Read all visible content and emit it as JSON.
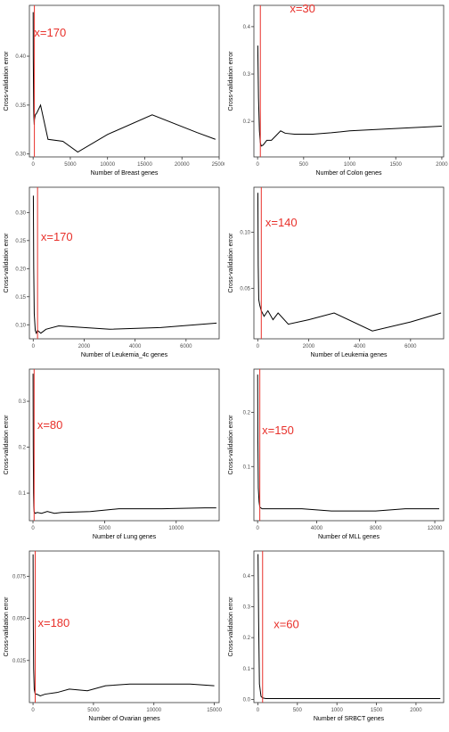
{
  "chart_data": [
    {
      "type": "line",
      "xlabel": "Number of Breast genes",
      "ylabel": "Cross-validation error",
      "xlim": [
        -500,
        25000
      ],
      "ylim": [
        0.297,
        0.452
      ],
      "xticks": [
        0,
        5000,
        10000,
        15000,
        20000,
        25000
      ],
      "xticklabels": [
        "0",
        "5000",
        "10000",
        "15000",
        "20000",
        "25000"
      ],
      "yticks": [
        0.3,
        0.35,
        0.4
      ],
      "yticklabels": [
        "0.30",
        "0.35",
        "0.40"
      ],
      "vline": 170,
      "annotation": "x=170",
      "annotation_pos": [
        150,
        0.42
      ],
      "x": [
        5,
        10,
        20,
        40,
        60,
        80,
        100,
        150,
        170,
        300,
        500,
        1000,
        2000,
        4000,
        6000,
        10000,
        16000,
        22000,
        24500
      ],
      "y": [
        0.445,
        0.43,
        0.4,
        0.38,
        0.36,
        0.345,
        0.338,
        0.33,
        0.335,
        0.34,
        0.342,
        0.35,
        0.315,
        0.313,
        0.302,
        0.32,
        0.34,
        0.322,
        0.315
      ]
    },
    {
      "type": "line",
      "xlabel": "Number of Colon genes",
      "ylabel": "Cross-validation error",
      "xlim": [
        -40,
        2020
      ],
      "ylim": [
        0.125,
        0.445
      ],
      "xticks": [
        0,
        500,
        1000,
        1500,
        2000
      ],
      "xticklabels": [
        "0",
        "500",
        "1000",
        "1500",
        "2000"
      ],
      "yticks": [
        0.2,
        0.3,
        0.4
      ],
      "yticklabels": [
        "0.2",
        "0.3",
        "0.4"
      ],
      "vline": 30,
      "annotation": "x=30",
      "annotation_pos": [
        350,
        0.43
      ],
      "x": [
        2,
        10,
        20,
        30,
        40,
        60,
        80,
        100,
        150,
        200,
        250,
        300,
        400,
        600,
        800,
        1000,
        1500,
        2000
      ],
      "y": [
        0.36,
        0.25,
        0.18,
        0.155,
        0.148,
        0.15,
        0.155,
        0.16,
        0.16,
        0.17,
        0.18,
        0.175,
        0.173,
        0.173,
        0.176,
        0.18,
        0.185,
        0.19
      ]
    },
    {
      "type": "line",
      "xlabel": "Number of Leukemia_4c genes",
      "ylabel": "Cross-validation error",
      "xlim": [
        -150,
        7300
      ],
      "ylim": [
        0.075,
        0.345
      ],
      "xticks": [
        0,
        2000,
        4000,
        6000
      ],
      "xticklabels": [
        "0",
        "2000",
        "4000",
        "6000"
      ],
      "yticks": [
        0.1,
        0.15,
        0.2,
        0.25,
        0.3
      ],
      "yticklabels": [
        "0.10",
        "0.15",
        "0.20",
        "0.25",
        "0.30"
      ],
      "vline": 170,
      "annotation": "x=170",
      "annotation_pos": [
        300,
        0.25
      ],
      "x": [
        5,
        20,
        40,
        80,
        120,
        170,
        300,
        500,
        1000,
        2000,
        3000,
        5000,
        7200
      ],
      "y": [
        0.33,
        0.2,
        0.12,
        0.09,
        0.085,
        0.09,
        0.085,
        0.092,
        0.098,
        0.095,
        0.092,
        0.095,
        0.103
      ]
    },
    {
      "type": "line",
      "xlabel": "Number of Leukemia genes",
      "ylabel": "Cross-validation error",
      "xlim": [
        -150,
        7300
      ],
      "ylim": [
        0.005,
        0.14
      ],
      "xticks": [
        0,
        2000,
        4000,
        6000
      ],
      "xticklabels": [
        "0",
        "2000",
        "4000",
        "6000"
      ],
      "yticks": [
        0.05,
        0.1
      ],
      "yticklabels": [
        "0.05",
        "0.10"
      ],
      "vline": 140,
      "annotation": "x=140",
      "annotation_pos": [
        300,
        0.105
      ],
      "x": [
        5,
        20,
        40,
        80,
        140,
        250,
        400,
        600,
        800,
        1200,
        2000,
        3000,
        4500,
        6000,
        7200
      ],
      "y": [
        0.135,
        0.07,
        0.04,
        0.035,
        0.03,
        0.025,
        0.03,
        0.022,
        0.028,
        0.018,
        0.022,
        0.028,
        0.012,
        0.02,
        0.028
      ]
    },
    {
      "type": "line",
      "xlabel": "Number of Lung genes",
      "ylabel": "Cross-validation error",
      "xlim": [
        -250,
        13000
      ],
      "ylim": [
        0.04,
        0.37
      ],
      "xticks": [
        0,
        5000,
        10000
      ],
      "xticklabels": [
        "0",
        "5000",
        "10000"
      ],
      "yticks": [
        0.1,
        0.2,
        0.3
      ],
      "yticklabels": [
        "0.1",
        "0.2",
        "0.3"
      ],
      "vline": 80,
      "annotation": "x=80",
      "annotation_pos": [
        300,
        0.24
      ],
      "x": [
        5,
        20,
        40,
        60,
        80,
        150,
        300,
        600,
        1000,
        1500,
        2000,
        4000,
        6000,
        9000,
        12000,
        12800
      ],
      "y": [
        0.36,
        0.2,
        0.1,
        0.07,
        0.06,
        0.056,
        0.058,
        0.056,
        0.06,
        0.056,
        0.058,
        0.06,
        0.066,
        0.066,
        0.068,
        0.068
      ]
    },
    {
      "type": "line",
      "xlabel": "Number of MLL genes",
      "ylabel": "Cross-validation error",
      "xlim": [
        -250,
        12600
      ],
      "ylim": [
        0.0,
        0.28
      ],
      "xticks": [
        0,
        4000,
        8000,
        12000
      ],
      "xticklabels": [
        "0",
        "4000",
        "8000",
        "12000"
      ],
      "yticks": [
        0.1,
        0.2
      ],
      "yticklabels": [
        "0.1",
        "0.2"
      ],
      "vline": 150,
      "annotation": "x=150",
      "annotation_pos": [
        300,
        0.16
      ],
      "x": [
        5,
        20,
        50,
        100,
        150,
        300,
        1000,
        2000,
        3000,
        5000,
        8000,
        10000,
        12300
      ],
      "y": [
        0.27,
        0.15,
        0.06,
        0.035,
        0.025,
        0.022,
        0.022,
        0.022,
        0.022,
        0.018,
        0.018,
        0.022,
        0.022
      ]
    },
    {
      "type": "line",
      "xlabel": "Number of Ovarian genes",
      "ylabel": "Cross-validation error",
      "xlim": [
        -300,
        15400
      ],
      "ylim": [
        0.0,
        0.09
      ],
      "xticks": [
        0,
        5000,
        10000,
        15000
      ],
      "xticklabels": [
        "0",
        "5000",
        "10000",
        "15000"
      ],
      "yticks": [
        0.025,
        0.05,
        0.075
      ],
      "yticklabels": [
        "0.025",
        "0.050",
        "0.075"
      ],
      "vline": 180,
      "annotation": "x=180",
      "annotation_pos": [
        400,
        0.045
      ],
      "x": [
        5,
        20,
        50,
        100,
        180,
        300,
        600,
        1000,
        2000,
        3000,
        4500,
        6000,
        8000,
        10000,
        13000,
        15000
      ],
      "y": [
        0.088,
        0.05,
        0.02,
        0.008,
        0.005,
        0.005,
        0.004,
        0.005,
        0.006,
        0.008,
        0.007,
        0.01,
        0.011,
        0.011,
        0.011,
        0.01
      ]
    },
    {
      "type": "line",
      "xlabel": "Number of SRBCT genes",
      "ylabel": "Cross-validation error",
      "xlim": [
        -50,
        2350
      ],
      "ylim": [
        -0.01,
        0.48
      ],
      "xticks": [
        0,
        500,
        1000,
        1500,
        2000
      ],
      "xticklabels": [
        "0",
        "500",
        "1000",
        "1500",
        "2000"
      ],
      "yticks": [
        0.0,
        0.1,
        0.2,
        0.3,
        0.4
      ],
      "yticklabels": [
        "0.0",
        "0.1",
        "0.2",
        "0.3",
        "0.4"
      ],
      "vline": 60,
      "annotation": "x=60",
      "annotation_pos": [
        200,
        0.23
      ],
      "x": [
        2,
        10,
        20,
        40,
        60,
        100,
        200,
        500,
        1000,
        1500,
        2000,
        2308
      ],
      "y": [
        0.47,
        0.25,
        0.05,
        0.01,
        0.005,
        0.003,
        0.003,
        0.003,
        0.003,
        0.003,
        0.003,
        0.003
      ]
    }
  ]
}
